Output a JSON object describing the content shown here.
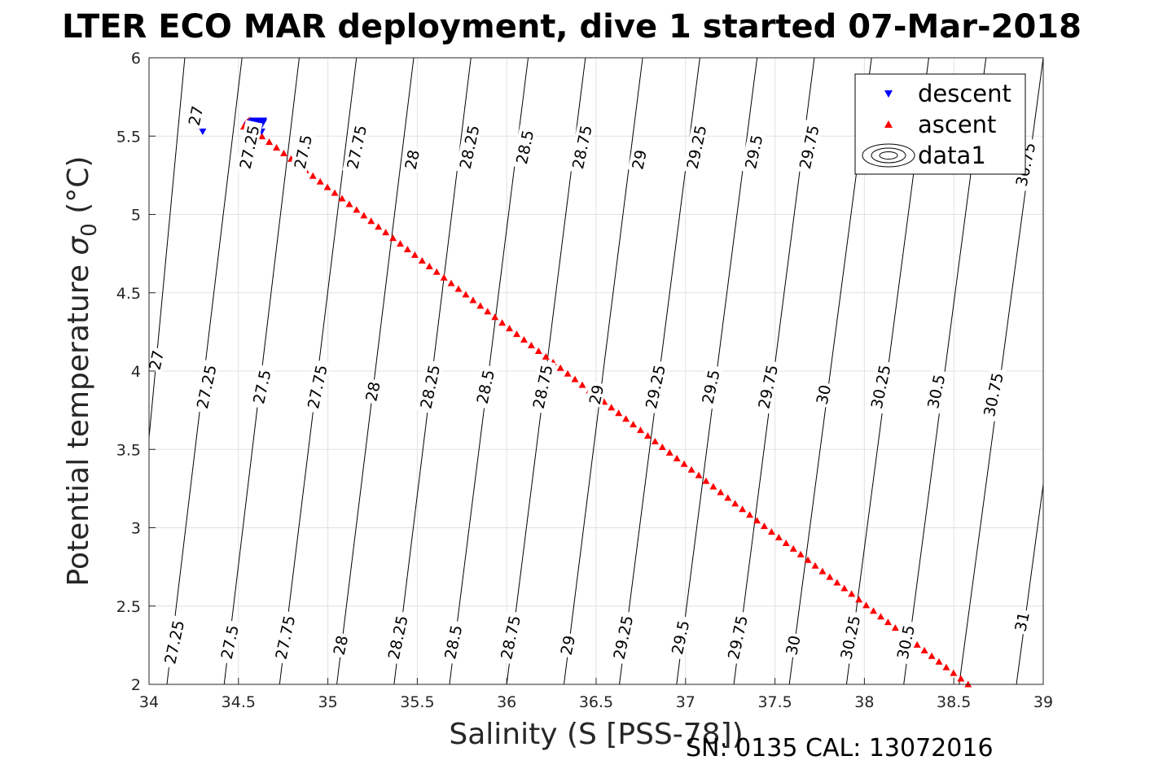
{
  "title": "LTER ECO MAR deployment, dive 1 started 07-Mar-2018",
  "footer": "SN: 0135  CAL: 13072016",
  "chart_data": {
    "type": "scatter",
    "title": "LTER ECO MAR deployment, dive 1 started 07-Mar-2018",
    "xlabel": "Salinity (S [PSS-78])",
    "ylabel_main": "Potential temperature ",
    "ylabel_sym": "σ",
    "ylabel_sub": "0",
    "ylabel_unit": " (°C)",
    "xlim": [
      34,
      39
    ],
    "ylim": [
      2,
      6
    ],
    "xticks": [
      "34",
      "34.5",
      "35",
      "35.5",
      "36",
      "36.5",
      "37",
      "37.5",
      "38",
      "38.5",
      "39"
    ],
    "yticks": [
      "2",
      "2.5",
      "3",
      "3.5",
      "4",
      "4.5",
      "5",
      "5.5",
      "6"
    ],
    "grid": true,
    "legend_position": "top-right",
    "legend": [
      "descent",
      "ascent",
      "data1"
    ],
    "series": [
      {
        "name": "descent",
        "color": "#0000ff",
        "marker": "triangle-down",
        "points": [
          [
            34.27,
            5.57
          ],
          [
            34.3,
            5.53
          ],
          [
            34.55,
            5.57
          ],
          [
            34.57,
            5.59
          ],
          [
            34.58,
            5.55
          ],
          [
            34.59,
            5.58
          ],
          [
            34.6,
            5.6
          ],
          [
            34.6,
            5.56
          ],
          [
            34.61,
            5.57
          ],
          [
            34.61,
            5.59
          ],
          [
            34.62,
            5.6
          ],
          [
            34.62,
            5.55
          ],
          [
            34.63,
            5.58
          ],
          [
            34.63,
            5.53
          ],
          [
            34.64,
            5.59
          ],
          [
            34.64,
            5.6
          ],
          [
            34.58,
            5.6
          ],
          [
            34.56,
            5.55
          ]
        ]
      },
      {
        "name": "ascent",
        "color": "#ff0000",
        "marker": "triangle-up",
        "start": [
          34.55,
          5.57
        ],
        "end": [
          38.58,
          2.0
        ],
        "count": 100,
        "cluster": [
          [
            34.53,
            5.56
          ],
          [
            34.54,
            5.58
          ],
          [
            34.55,
            5.54
          ],
          [
            34.56,
            5.6
          ],
          [
            34.57,
            5.57
          ],
          [
            34.55,
            5.59
          ],
          [
            34.58,
            5.55
          ]
        ]
      }
    ],
    "contours": {
      "name": "data1",
      "levels": [
        "27",
        "27.25",
        "27.5",
        "27.75",
        "28",
        "28.25",
        "28.5",
        "28.75",
        "29",
        "29.25",
        "29.5",
        "29.75",
        "30",
        "30.25",
        "30.5",
        "30.75",
        "31"
      ],
      "bottom_salinity": [
        33.87,
        34.1,
        34.42,
        34.73,
        35.05,
        35.37,
        35.68,
        36.0,
        36.32,
        36.63,
        36.95,
        37.27,
        37.58,
        37.9,
        38.22,
        38.53,
        38.85
      ],
      "top_salinity": [
        34.2,
        34.52,
        34.84,
        35.16,
        35.48,
        35.8,
        36.12,
        36.44,
        36.76,
        37.08,
        37.4,
        37.72,
        38.04,
        38.36,
        38.68,
        39.0,
        39.32
      ]
    },
    "contour_labels": [
      {
        "text": "27",
        "s": 34.26,
        "t": 5.63
      },
      {
        "text": "27.25",
        "s": 34.56,
        "t": 5.43
      },
      {
        "text": "27.5",
        "s": 34.86,
        "t": 5.4
      },
      {
        "text": "27.75",
        "s": 35.16,
        "t": 5.43
      },
      {
        "text": "28",
        "s": 35.47,
        "t": 5.35
      },
      {
        "text": "28.25",
        "s": 35.79,
        "t": 5.43
      },
      {
        "text": "28.5",
        "s": 36.1,
        "t": 5.43
      },
      {
        "text": "28.75",
        "s": 36.42,
        "t": 5.43
      },
      {
        "text": "29",
        "s": 36.74,
        "t": 5.35
      },
      {
        "text": "29.25",
        "s": 37.06,
        "t": 5.43
      },
      {
        "text": "29.5",
        "s": 37.38,
        "t": 5.4
      },
      {
        "text": "29.75",
        "s": 37.69,
        "t": 5.43
      },
      {
        "text": "30.75",
        "s": 38.9,
        "t": 5.32
      },
      {
        "text": "27",
        "s": 34.04,
        "t": 4.07
      },
      {
        "text": "27.25",
        "s": 34.32,
        "t": 3.9
      },
      {
        "text": "27.5",
        "s": 34.63,
        "t": 3.9
      },
      {
        "text": "27.75",
        "s": 34.94,
        "t": 3.9
      },
      {
        "text": "28",
        "s": 35.25,
        "t": 3.87
      },
      {
        "text": "28.25",
        "s": 35.57,
        "t": 3.9
      },
      {
        "text": "28.5",
        "s": 35.88,
        "t": 3.9
      },
      {
        "text": "28.75",
        "s": 36.2,
        "t": 3.9
      },
      {
        "text": "29",
        "s": 36.5,
        "t": 3.85
      },
      {
        "text": "29.25",
        "s": 36.83,
        "t": 3.9
      },
      {
        "text": "29.5",
        "s": 37.14,
        "t": 3.9
      },
      {
        "text": "29.75",
        "s": 37.46,
        "t": 3.9
      },
      {
        "text": "30",
        "s": 37.77,
        "t": 3.85
      },
      {
        "text": "30.25",
        "s": 38.09,
        "t": 3.9
      },
      {
        "text": "30.5",
        "s": 38.4,
        "t": 3.87
      },
      {
        "text": "30.75",
        "s": 38.72,
        "t": 3.85
      },
      {
        "text": "27.25",
        "s": 34.14,
        "t": 2.27
      },
      {
        "text": "27.5",
        "s": 34.45,
        "t": 2.27
      },
      {
        "text": "27.75",
        "s": 34.76,
        "t": 2.3
      },
      {
        "text": "28",
        "s": 35.07,
        "t": 2.25
      },
      {
        "text": "28.25",
        "s": 35.39,
        "t": 2.3
      },
      {
        "text": "28.5",
        "s": 35.7,
        "t": 2.27
      },
      {
        "text": "28.75",
        "s": 36.02,
        "t": 2.3
      },
      {
        "text": "29",
        "s": 36.34,
        "t": 2.25
      },
      {
        "text": "29.25",
        "s": 36.65,
        "t": 2.3
      },
      {
        "text": "29.5",
        "s": 36.97,
        "t": 2.3
      },
      {
        "text": "29.75",
        "s": 37.29,
        "t": 2.3
      },
      {
        "text": "30",
        "s": 37.6,
        "t": 2.25
      },
      {
        "text": "30.25",
        "s": 37.92,
        "t": 2.3
      },
      {
        "text": "30.5",
        "s": 38.23,
        "t": 2.27
      },
      {
        "text": "31",
        "s": 38.88,
        "t": 2.4
      }
    ]
  }
}
